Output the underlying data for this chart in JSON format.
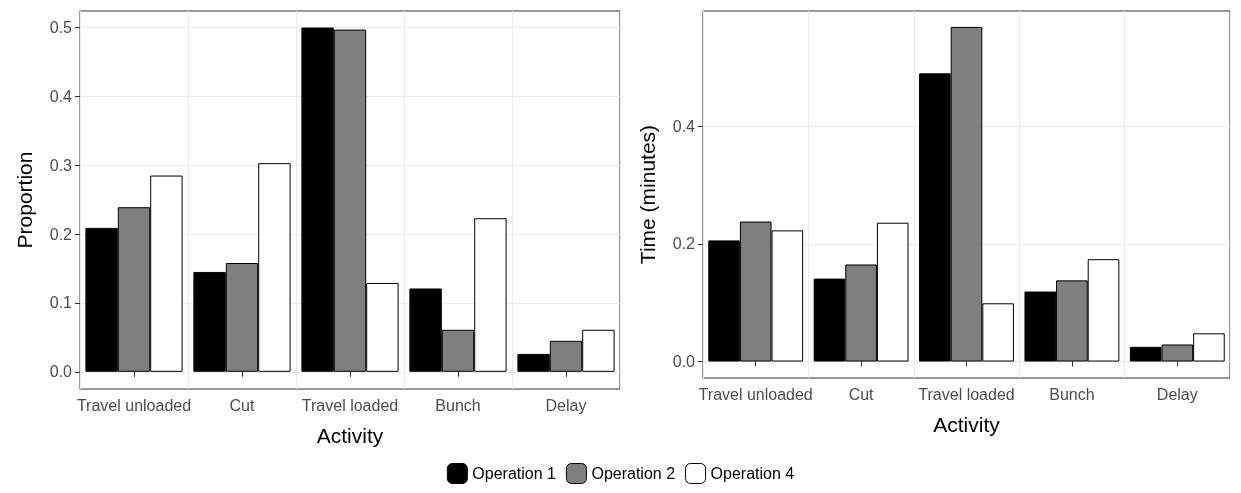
{
  "chart_data": [
    {
      "type": "bar",
      "xlabel": "Activity",
      "ylabel": "Proportion",
      "categories": [
        "Travel unloaded",
        "Cut",
        "Travel loaded",
        "Bunch",
        "Delay"
      ],
      "series": [
        {
          "name": "Operation 1",
          "color": "#000000",
          "values": [
            0.209,
            0.145,
            0.5,
            0.121,
            0.026
          ]
        },
        {
          "name": "Operation 2",
          "color": "#7f7f7f",
          "values": [
            0.239,
            0.158,
            0.497,
            0.061,
            0.045
          ]
        },
        {
          "name": "Operation 4",
          "color": "#ffffff",
          "values": [
            0.285,
            0.303,
            0.129,
            0.223,
            0.061
          ]
        }
      ],
      "ylim": [
        -0.025,
        0.524
      ],
      "yticks": [
        {
          "value": 0,
          "label": "0.0"
        },
        0.1,
        0.2,
        0.3,
        0.4,
        0.5
      ],
      "grid": true,
      "legend": "bottom"
    },
    {
      "type": "bar",
      "xlabel": "Activity",
      "ylabel": "Time (minutes)",
      "categories": [
        "Travel unloaded",
        "Cut",
        "Travel loaded",
        "Bunch",
        "Delay"
      ],
      "series": [
        {
          "color": "#000000",
          "values": [
            0.206,
            0.141,
            0.49,
            0.119,
            0.025
          ]
        },
        {
          "color": "#7f7f7f",
          "values": [
            0.238,
            0.165,
            0.569,
            0.138,
            0.029
          ]
        },
        {
          "color": "#ffffff",
          "values": [
            0.223,
            0.236,
            0.099,
            0.174,
            0.048
          ]
        }
      ],
      "ylim": [
        -0.028,
        0.596
      ],
      "yticks": [
        {
          "value": 0,
          "label": "0.0"
        },
        {
          "value": 0.2,
          "label": "0.2"
        },
        {
          "value": 0.4,
          "label": "0.4"
        }
      ],
      "grid": true
    }
  ]
}
